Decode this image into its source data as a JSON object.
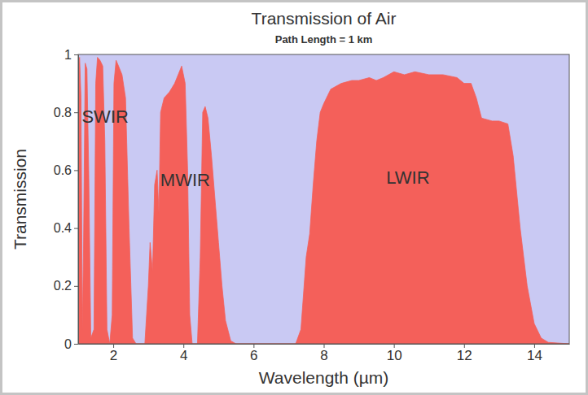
{
  "chart_data": {
    "type": "area",
    "title": "Transmission of Air",
    "subtitle": "Path Length = 1 km",
    "x_label": "Wavelength (µm)",
    "y_label": "Transmission",
    "color": "#f4605a",
    "xlim": [
      1,
      15
    ],
    "ylim": [
      0,
      1
    ],
    "xticks": [
      2,
      4,
      6,
      8,
      10,
      12,
      14
    ],
    "yticks": [
      0,
      0.2,
      0.4,
      0.6,
      0.8,
      1
    ],
    "grid": false,
    "x": [
      1.0,
      1.04,
      1.08,
      1.12,
      1.15,
      1.2,
      1.25,
      1.3,
      1.36,
      1.45,
      1.5,
      1.55,
      1.62,
      1.7,
      1.76,
      1.82,
      1.9,
      1.97,
      2.02,
      2.08,
      2.15,
      2.25,
      2.35,
      2.45,
      2.55,
      2.65,
      2.9,
      3.0,
      3.05,
      3.12,
      3.18,
      3.25,
      3.3,
      3.35,
      3.45,
      3.6,
      3.75,
      3.85,
      3.95,
      4.05,
      4.12,
      4.18,
      4.25,
      4.4,
      4.48,
      4.55,
      4.62,
      4.7,
      4.8,
      4.9,
      5.0,
      5.1,
      5.2,
      5.35,
      5.5,
      7.2,
      7.35,
      7.5,
      7.6,
      7.7,
      7.8,
      7.9,
      8.0,
      8.2,
      8.5,
      8.8,
      9.0,
      9.3,
      9.5,
      9.7,
      10.0,
      10.3,
      10.6,
      11.0,
      11.4,
      11.8,
      12.0,
      12.2,
      12.35,
      12.5,
      12.8,
      13.0,
      13.25,
      13.4,
      13.6,
      13.8,
      14.0,
      14.2,
      14.4,
      15.0
    ],
    "values": [
      0.98,
      0.99,
      0.85,
      0.05,
      0.3,
      0.97,
      0.95,
      0.6,
      0.02,
      0.05,
      0.9,
      0.99,
      0.98,
      0.96,
      0.7,
      0.05,
      0.0,
      0.1,
      0.9,
      0.98,
      0.96,
      0.93,
      0.85,
      0.4,
      0.02,
      0.0,
      0.0,
      0.2,
      0.35,
      0.25,
      0.55,
      0.6,
      0.45,
      0.8,
      0.85,
      0.87,
      0.9,
      0.93,
      0.96,
      0.9,
      0.6,
      0.1,
      0.0,
      0.0,
      0.3,
      0.8,
      0.82,
      0.78,
      0.65,
      0.5,
      0.35,
      0.2,
      0.08,
      0.01,
      0.0,
      0.0,
      0.05,
      0.3,
      0.38,
      0.55,
      0.7,
      0.8,
      0.83,
      0.88,
      0.9,
      0.91,
      0.91,
      0.92,
      0.91,
      0.92,
      0.94,
      0.93,
      0.94,
      0.93,
      0.93,
      0.92,
      0.9,
      0.9,
      0.85,
      0.78,
      0.77,
      0.77,
      0.76,
      0.65,
      0.4,
      0.2,
      0.07,
      0.02,
      0.005,
      0.0
    ],
    "annotations": [
      {
        "text": "SWIR",
        "x": 1.77,
        "y": 0.78
      },
      {
        "text": "MWIR",
        "x": 4.05,
        "y": 0.56
      },
      {
        "text": "LWIR",
        "x": 10.4,
        "y": 0.57
      }
    ]
  }
}
